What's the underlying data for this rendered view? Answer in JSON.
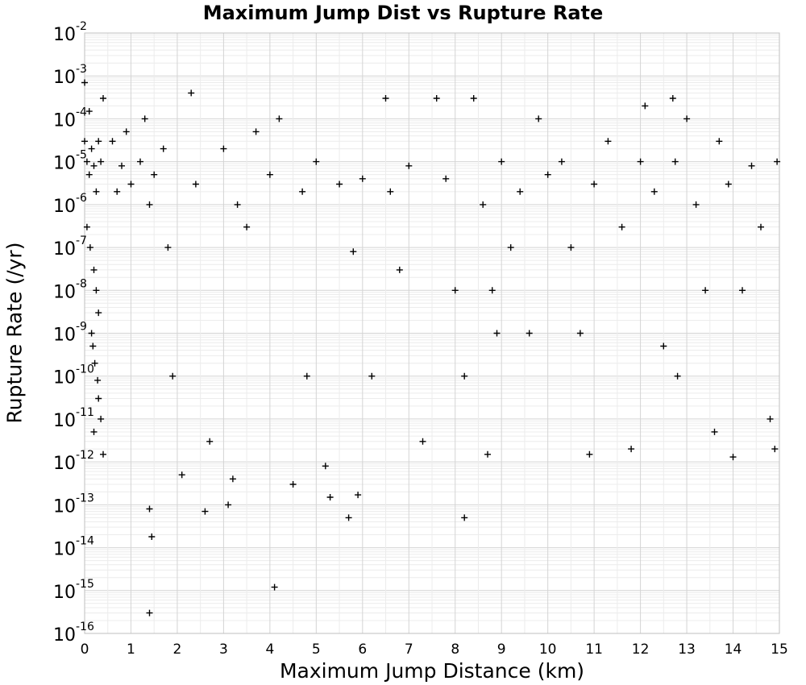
{
  "chart_data": {
    "type": "scatter",
    "title": "Maximum Jump Dist vs Rupture Rate",
    "xlabel": "Maximum Jump Distance (km)",
    "ylabel": "Rupture Rate (/yr)",
    "xlim": [
      0,
      15
    ],
    "ylim": [
      1e-16,
      0.01
    ],
    "y_scale": "log",
    "x_ticks": [
      "0",
      "1",
      "2",
      "3",
      "4",
      "5",
      "6",
      "7",
      "8",
      "9",
      "10",
      "11",
      "12",
      "13",
      "14",
      "15"
    ],
    "y_ticks": [
      {
        "base": "10",
        "exp": "-2"
      },
      {
        "base": "10",
        "exp": "-3"
      },
      {
        "base": "10",
        "exp": "-4"
      },
      {
        "base": "10",
        "exp": "-5"
      },
      {
        "base": "10",
        "exp": "-6"
      },
      {
        "base": "10",
        "exp": "-7"
      },
      {
        "base": "10",
        "exp": "-8"
      },
      {
        "base": "10",
        "exp": "-9"
      },
      {
        "base": "10",
        "exp": "-10"
      },
      {
        "base": "10",
        "exp": "-11"
      },
      {
        "base": "10",
        "exp": "-12"
      },
      {
        "base": "10",
        "exp": "-13"
      },
      {
        "base": "10",
        "exp": "-14"
      },
      {
        "base": "10",
        "exp": "-15"
      },
      {
        "base": "10",
        "exp": "-16"
      }
    ],
    "grid": true,
    "marker": "+",
    "marker_color": "#000000",
    "series": [
      {
        "points": [
          [
            0.0,
            0.0007
          ],
          [
            0.0,
            3e-05
          ],
          [
            0.05,
            1e-05
          ],
          [
            0.1,
            5e-06
          ],
          [
            0.15,
            2e-05
          ],
          [
            0.2,
            8e-06
          ],
          [
            0.1,
            0.00015
          ],
          [
            0.3,
            3e-05
          ],
          [
            0.25,
            2e-06
          ],
          [
            0.35,
            1e-05
          ],
          [
            0.4,
            0.0003
          ],
          [
            0.05,
            3e-07
          ],
          [
            0.12,
            1e-07
          ],
          [
            0.2,
            3e-08
          ],
          [
            0.25,
            1e-08
          ],
          [
            0.3,
            3e-09
          ],
          [
            0.15,
            1e-09
          ],
          [
            0.18,
            5e-10
          ],
          [
            0.22,
            2e-10
          ],
          [
            0.28,
            8e-11
          ],
          [
            0.3,
            3e-11
          ],
          [
            0.35,
            1e-11
          ],
          [
            0.2,
            5e-12
          ],
          [
            0.4,
            1.5e-12
          ],
          [
            0.6,
            3e-05
          ],
          [
            0.7,
            2e-06
          ],
          [
            0.8,
            8e-06
          ],
          [
            0.9,
            5e-05
          ],
          [
            1.0,
            3e-06
          ],
          [
            1.2,
            1e-05
          ],
          [
            1.3,
            0.0001
          ],
          [
            1.4,
            1e-06
          ],
          [
            1.4,
            8e-14
          ],
          [
            1.45,
            1.8e-14
          ],
          [
            1.4,
            3e-16
          ],
          [
            1.5,
            5e-06
          ],
          [
            1.7,
            2e-05
          ],
          [
            1.8,
            1e-07
          ],
          [
            1.9,
            1e-10
          ],
          [
            2.1,
            5e-13
          ],
          [
            2.3,
            0.0004
          ],
          [
            2.4,
            3e-06
          ],
          [
            2.6,
            7e-14
          ],
          [
            2.7,
            3e-12
          ],
          [
            3.0,
            2e-05
          ],
          [
            3.1,
            1e-13
          ],
          [
            3.2,
            4e-13
          ],
          [
            3.3,
            1e-06
          ],
          [
            3.5,
            3e-07
          ],
          [
            3.7,
            5e-05
          ],
          [
            4.0,
            5e-06
          ],
          [
            4.1,
            1.2e-15
          ],
          [
            4.2,
            0.0001
          ],
          [
            4.5,
            3e-13
          ],
          [
            4.7,
            2e-06
          ],
          [
            4.8,
            1e-10
          ],
          [
            5.0,
            1e-05
          ],
          [
            5.2,
            8e-13
          ],
          [
            5.3,
            1.5e-13
          ],
          [
            5.5,
            3e-06
          ],
          [
            5.7,
            5e-14
          ],
          [
            5.8,
            8e-08
          ],
          [
            5.9,
            1.7e-13
          ],
          [
            6.0,
            4e-06
          ],
          [
            6.2,
            1e-10
          ],
          [
            6.5,
            0.0003
          ],
          [
            6.6,
            2e-06
          ],
          [
            6.8,
            3e-08
          ],
          [
            7.0,
            8e-06
          ],
          [
            7.3,
            3e-12
          ],
          [
            7.6,
            0.0003
          ],
          [
            7.8,
            4e-06
          ],
          [
            8.0,
            1e-08
          ],
          [
            8.2,
            1e-10
          ],
          [
            8.2,
            5e-14
          ],
          [
            8.4,
            0.0003
          ],
          [
            8.6,
            1e-06
          ],
          [
            8.7,
            1.5e-12
          ],
          [
            8.8,
            1e-08
          ],
          [
            8.9,
            1e-09
          ],
          [
            9.0,
            1e-05
          ],
          [
            9.2,
            1e-07
          ],
          [
            9.4,
            2e-06
          ],
          [
            9.6,
            1e-09
          ],
          [
            9.8,
            0.0001
          ],
          [
            10.0,
            5e-06
          ],
          [
            10.3,
            1e-05
          ],
          [
            10.5,
            1e-07
          ],
          [
            10.7,
            1e-09
          ],
          [
            10.9,
            1.5e-12
          ],
          [
            11.0,
            3e-06
          ],
          [
            11.3,
            3e-05
          ],
          [
            11.6,
            3e-07
          ],
          [
            11.8,
            2e-12
          ],
          [
            12.0,
            1e-05
          ],
          [
            12.1,
            0.0002
          ],
          [
            12.3,
            2e-06
          ],
          [
            12.5,
            5e-10
          ],
          [
            12.7,
            0.0003
          ],
          [
            12.75,
            1e-05
          ],
          [
            12.8,
            1e-10
          ],
          [
            13.0,
            0.0001
          ],
          [
            13.2,
            1e-06
          ],
          [
            13.4,
            1e-08
          ],
          [
            13.6,
            5e-12
          ],
          [
            13.7,
            3e-05
          ],
          [
            13.9,
            3e-06
          ],
          [
            14.0,
            1.3e-12
          ],
          [
            14.2,
            1e-08
          ],
          [
            14.4,
            8e-06
          ],
          [
            14.6,
            3e-07
          ],
          [
            14.8,
            1e-11
          ],
          [
            14.95,
            1e-05
          ],
          [
            14.9,
            2e-12
          ]
        ]
      }
    ]
  }
}
